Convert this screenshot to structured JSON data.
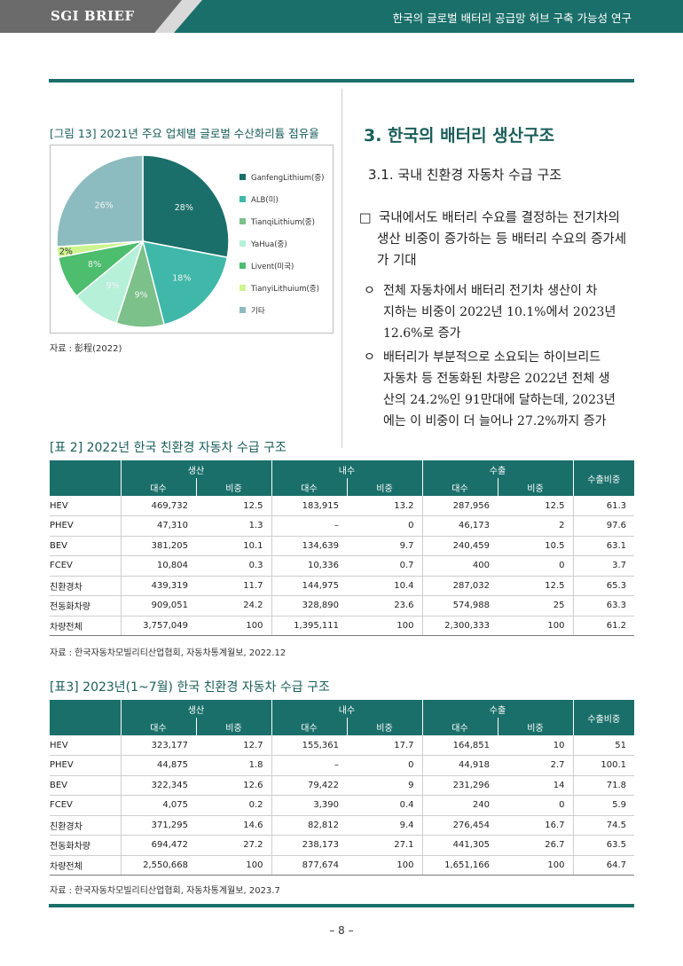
{
  "header": {
    "brand": "SGI BRIEF",
    "title": "한국의 글로벌 배터리 공급망 허브 구축 가능성 연구"
  },
  "figure": {
    "caption": "[그림 13] 2021년 주요 업체별 글로벌 수산화리튬 점유율",
    "source": "자료 : 彭程(2022)",
    "chart_data": {
      "type": "pie",
      "categories": [
        "GanfengLithium(중)",
        "ALB(미)",
        "TianqiLithium(중)",
        "YaHua(중)",
        "Livent(미국)",
        "TianyiLithuium(중)",
        "기타"
      ],
      "values": [
        28,
        18,
        9,
        9,
        8,
        2,
        26
      ],
      "value_labels": [
        "28%",
        "18%",
        "9%",
        "9%",
        "8%",
        "2%",
        "26%"
      ],
      "colors": [
        "#1a6f6a",
        "#3fb8aa",
        "#7cc08a",
        "#b6f0d9",
        "#4dbd6e",
        "#ccf58f",
        "#8cbcbf"
      ],
      "legend_position": "right"
    }
  },
  "section": {
    "title": "3. 한국의 배터리 생산구조",
    "subtitle": "3.1. 국내 친환경 자동차 수급 구조",
    "main_bullet": "□",
    "main_lines": [
      "국내에서도 배터리 수요를 결정하는 전기차의",
      "생산 비중이 증가하는 등 배터리 수요의 증가세",
      "가 기대"
    ],
    "sub_bullet": "ㅇ",
    "sub1_lines": [
      "전체 자동차에서 배터리 전기차 생산이 차",
      "지하는 비중이 2022년 10.1%에서 2023년",
      "12.6%로 증가"
    ],
    "sub2_lines": [
      "배터리가 부분적으로 소요되는 하이브리드",
      "자동차 등 전동화된 차량은 2022년 전체 생",
      "산의 24.2%인 91만대에 달하는데, 2023년",
      "에는 이 비중이 더 늘어나 27.2%까지 증가"
    ]
  },
  "table2": {
    "caption": "[표 2] 2022년 한국 친환경 자동차 수급 구조",
    "groups": [
      "생산",
      "내수",
      "수출"
    ],
    "last_header": "수출비중",
    "subheaders": [
      "대수",
      "비중",
      "대수",
      "비중",
      "대수",
      "비중"
    ],
    "rows": [
      {
        "label": "HEV",
        "cells": [
          "469,732",
          "12.5",
          "183,915",
          "13.2",
          "287,956",
          "12.5",
          "61.3"
        ]
      },
      {
        "label": "PHEV",
        "cells": [
          "47,310",
          "1.3",
          "–",
          "0",
          "46,173",
          "2",
          "97.6"
        ]
      },
      {
        "label": "BEV",
        "cells": [
          "381,205",
          "10.1",
          "134,639",
          "9.7",
          "240,459",
          "10.5",
          "63.1"
        ]
      },
      {
        "label": "FCEV",
        "cells": [
          "10,804",
          "0.3",
          "10,336",
          "0.7",
          "400",
          "0",
          "3.7"
        ]
      },
      {
        "label": "친환경차",
        "cells": [
          "439,319",
          "11.7",
          "144,975",
          "10.4",
          "287,032",
          "12.5",
          "65.3"
        ]
      },
      {
        "label": "전동화차량",
        "cells": [
          "909,051",
          "24.2",
          "328,890",
          "23.6",
          "574,988",
          "25",
          "63.3"
        ]
      },
      {
        "label": "차량전체",
        "cells": [
          "3,757,049",
          "100",
          "1,395,111",
          "100",
          "2,300,333",
          "100",
          "61.2"
        ]
      }
    ],
    "source": "자료 : 한국자동차모빌리티산업협회, 자동차통계월보, 2022.12"
  },
  "table3": {
    "caption": "[표3] 2023년(1~7월) 한국 친환경 자동차 수급 구조",
    "groups": [
      "생산",
      "내수",
      "수출"
    ],
    "last_header": "수출비중",
    "subheaders": [
      "대수",
      "비중",
      "대수",
      "비중",
      "대수",
      "비중"
    ],
    "rows": [
      {
        "label": "HEV",
        "cells": [
          "323,177",
          "12.7",
          "155,361",
          "17.7",
          "164,851",
          "10",
          "51"
        ]
      },
      {
        "label": "PHEV",
        "cells": [
          "44,875",
          "1.8",
          "–",
          "0",
          "44,918",
          "2.7",
          "100.1"
        ]
      },
      {
        "label": "BEV",
        "cells": [
          "322,345",
          "12.6",
          "79,422",
          "9",
          "231,296",
          "14",
          "71.8"
        ]
      },
      {
        "label": "FCEV",
        "cells": [
          "4,075",
          "0.2",
          "3,390",
          "0.4",
          "240",
          "0",
          "5.9"
        ]
      },
      {
        "label": "친환경차",
        "cells": [
          "371,295",
          "14.6",
          "82,812",
          "9.4",
          "276,454",
          "16.7",
          "74.5"
        ]
      },
      {
        "label": "전동화차량",
        "cells": [
          "694,472",
          "27.2",
          "238,173",
          "27.1",
          "441,305",
          "26.7",
          "63.5"
        ]
      },
      {
        "label": "차량전체",
        "cells": [
          "2,550,668",
          "100",
          "877,674",
          "100",
          "1,651,166",
          "100",
          "64.7"
        ]
      }
    ],
    "source": "자료 : 한국자동차모빌리티산업협회, 자동차통계월보, 2023.7"
  },
  "footer": {
    "page_number": "– 8 –"
  }
}
